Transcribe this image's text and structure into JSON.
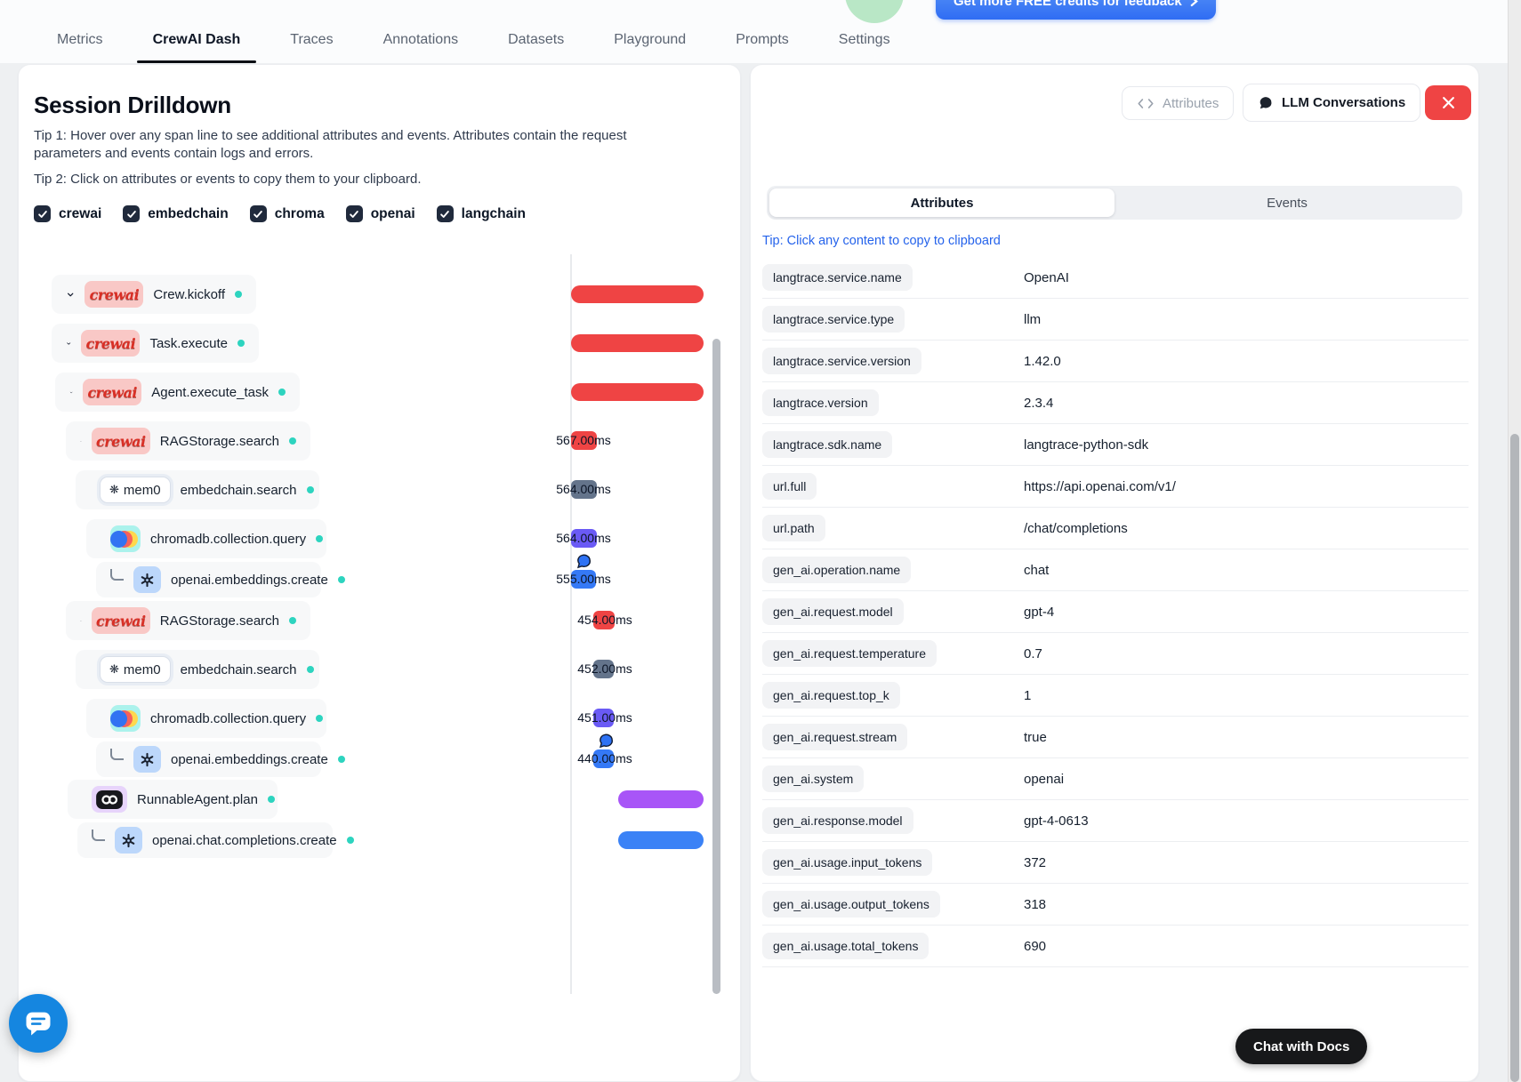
{
  "header": {
    "credits_button": "Get more FREE credits for feedback",
    "tabs": [
      {
        "label": "Metrics",
        "active": false
      },
      {
        "label": "CrewAI Dash",
        "active": true
      },
      {
        "label": "Traces",
        "active": false
      },
      {
        "label": "Annotations",
        "active": false
      },
      {
        "label": "Datasets",
        "active": false
      },
      {
        "label": "Playground",
        "active": false
      },
      {
        "label": "Prompts",
        "active": false
      },
      {
        "label": "Settings",
        "active": false
      }
    ]
  },
  "left_panel": {
    "title": "Session Drilldown",
    "tip1": "Tip 1: Hover over any span line to see additional attributes and events. Attributes contain the request parameters and events contain logs and errors.",
    "tip2": "Tip 2: Click on attributes or events to copy them to your clipboard.",
    "filters": [
      {
        "label": "crewai",
        "checked": true
      },
      {
        "label": "embedchain",
        "checked": true
      },
      {
        "label": "chroma",
        "checked": true
      },
      {
        "label": "openai",
        "checked": true
      },
      {
        "label": "langchain",
        "checked": true
      }
    ],
    "tree": [
      {
        "name": "Crew.kickoff",
        "badge": "crewai",
        "connector": "chevron",
        "bar_color": "#ef4444"
      },
      {
        "name": "Task.execute",
        "badge": "crewai",
        "connector": "chevron",
        "bar_color": "#ef4444"
      },
      {
        "name": "Agent.execute_task",
        "badge": "crewai",
        "connector": "chevron",
        "bar_color": "#ef4444"
      },
      {
        "name": "RAGStorage.search",
        "badge": "crewai",
        "connector": "chevron",
        "duration": "567.00ms",
        "bar_color": "#ef4444"
      },
      {
        "name": "embedchain.search",
        "badge": "mem0",
        "connector": "chevron",
        "duration": "564.00ms",
        "bar_color": "#64748b"
      },
      {
        "name": "chromadb.collection.query",
        "badge": "chroma",
        "connector": "chevron",
        "duration": "564.00ms",
        "bar_color": "#6a5af5"
      },
      {
        "name": "openai.embeddings.create",
        "badge": "openai",
        "connector": "elbow",
        "duration": "555.00ms",
        "bar_color": "#3579f6",
        "bubble": true
      },
      {
        "name": "RAGStorage.search",
        "badge": "crewai",
        "connector": "chevron",
        "duration": "454.00ms",
        "bar_color": "#ef4444"
      },
      {
        "name": "embedchain.search",
        "badge": "mem0",
        "connector": "chevron",
        "duration": "452.00ms",
        "bar_color": "#64748b"
      },
      {
        "name": "chromadb.collection.query",
        "badge": "chroma",
        "connector": "chevron",
        "duration": "451.00ms",
        "bar_color": "#6a5af5"
      },
      {
        "name": "openai.embeddings.create",
        "badge": "openai",
        "connector": "elbow",
        "duration": "440.00ms",
        "bar_color": "#3579f6",
        "bubble": true
      },
      {
        "name": "RunnableAgent.plan",
        "badge": "langchain",
        "connector": "chevron",
        "bar_color": "#a855f7"
      },
      {
        "name": "openai.chat.completions.create",
        "badge": "openai",
        "connector": "elbow",
        "bar_color": "#3b82f6"
      }
    ]
  },
  "right_panel": {
    "toolbar": {
      "attributes_label": "Attributes",
      "llm_conversations_label": "LLM Conversations"
    },
    "tabs": {
      "items": [
        "Attributes",
        "Events"
      ],
      "active": "Attributes"
    },
    "tip": "Tip: Click any content to copy to clipboard",
    "attributes": [
      {
        "key": "langtrace.service.name",
        "value": "OpenAI"
      },
      {
        "key": "langtrace.service.type",
        "value": "llm"
      },
      {
        "key": "langtrace.service.version",
        "value": "1.42.0"
      },
      {
        "key": "langtrace.version",
        "value": "2.3.4"
      },
      {
        "key": "langtrace.sdk.name",
        "value": "langtrace-python-sdk"
      },
      {
        "key": "url.full",
        "value": "https://api.openai.com/v1/"
      },
      {
        "key": "url.path",
        "value": "/chat/completions"
      },
      {
        "key": "gen_ai.operation.name",
        "value": "chat"
      },
      {
        "key": "gen_ai.request.model",
        "value": "gpt-4"
      },
      {
        "key": "gen_ai.request.temperature",
        "value": "0.7"
      },
      {
        "key": "gen_ai.request.top_k",
        "value": "1"
      },
      {
        "key": "gen_ai.request.stream",
        "value": "true"
      },
      {
        "key": "gen_ai.system",
        "value": "openai"
      },
      {
        "key": "gen_ai.response.model",
        "value": "gpt-4-0613"
      },
      {
        "key": "gen_ai.usage.input_tokens",
        "value": "372"
      },
      {
        "key": "gen_ai.usage.output_tokens",
        "value": "318"
      },
      {
        "key": "gen_ai.usage.total_tokens",
        "value": "690"
      }
    ]
  },
  "footer": {
    "chat_with_docs": "Chat with Docs"
  },
  "colors": {
    "accent_red": "#ef4444",
    "accent_slate": "#64748b",
    "accent_indigo": "#6a5af5",
    "accent_blue": "#3b82f6",
    "accent_purple": "#a855f7",
    "status_teal": "#2dd4bf",
    "link_blue": "#2563eb",
    "close_red": "#ef4444",
    "launcher_blue": "#1586e0"
  }
}
